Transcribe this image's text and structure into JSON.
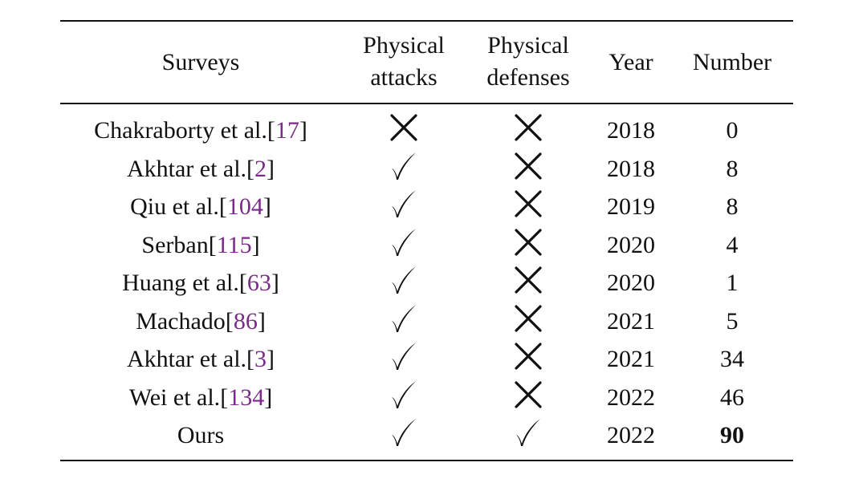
{
  "headers": {
    "surveys": "Surveys",
    "physical_attacks_line1": "Physical",
    "physical_attacks_line2": "attacks",
    "physical_defenses_line1": "Physical",
    "physical_defenses_line2": "defenses",
    "year": "Year",
    "number": "Number"
  },
  "rows": [
    {
      "name": "Chakraborty et al.",
      "cite": "17",
      "attacks": "cross",
      "defenses": "cross",
      "year": "2018",
      "number": "0"
    },
    {
      "name": "Akhtar et al.",
      "cite": "2",
      "attacks": "check",
      "defenses": "cross",
      "year": "2018",
      "number": "8"
    },
    {
      "name": "Qiu et al.",
      "cite": "104",
      "attacks": "check",
      "defenses": "cross",
      "year": "2019",
      "number": "8"
    },
    {
      "name": "Serban",
      "cite": "115",
      "attacks": "check",
      "defenses": "cross",
      "year": "2020",
      "number": "4"
    },
    {
      "name": "Huang et al.",
      "cite": "63",
      "attacks": "check",
      "defenses": "cross",
      "year": "2020",
      "number": "1"
    },
    {
      "name": "Machado",
      "cite": "86",
      "attacks": "check",
      "defenses": "cross",
      "year": "2021",
      "number": "5"
    },
    {
      "name": "Akhtar et al.",
      "cite": "3",
      "attacks": "check",
      "defenses": "cross",
      "year": "2021",
      "number": "34"
    },
    {
      "name": "Wei et al.",
      "cite": "134",
      "attacks": "check",
      "defenses": "cross",
      "year": "2022",
      "number": "46"
    },
    {
      "name": "Ours",
      "cite": "",
      "attacks": "check",
      "defenses": "check",
      "year": "2022",
      "number": "90",
      "number_bold": true
    }
  ],
  "icons": {
    "check": "check-icon",
    "cross": "cross-icon"
  },
  "colors": {
    "citation": "#7b2a8a",
    "text": "#111111"
  }
}
